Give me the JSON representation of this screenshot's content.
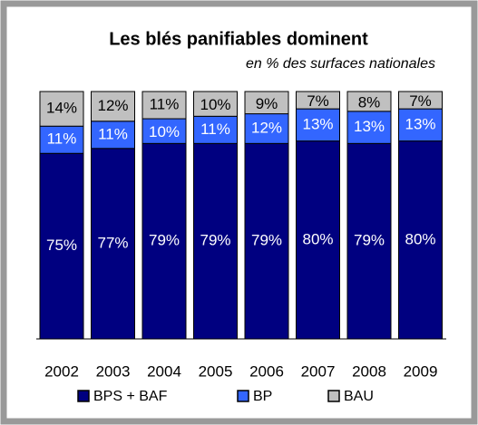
{
  "chart_data": {
    "type": "stacked_bar",
    "title": "Les blés panifiables dominent",
    "subtitle": "en % des surfaces nationales",
    "categories": [
      "2002",
      "2003",
      "2004",
      "2005",
      "2006",
      "2007",
      "2008",
      "2009"
    ],
    "series": [
      {
        "name": "BPS + BAF",
        "color": "#000080",
        "label_color": "#ffffff",
        "values": [
          75,
          77,
          79,
          79,
          79,
          80,
          79,
          80
        ],
        "value_labels": [
          "75%",
          "77%",
          "79%",
          "79%",
          "79%",
          "80%",
          "79%",
          "80%"
        ]
      },
      {
        "name": "BP",
        "color": "#3366ff",
        "label_color": "#ffffff",
        "values": [
          11,
          11,
          10,
          11,
          12,
          13,
          13,
          13
        ],
        "value_labels": [
          "11%",
          "11%",
          "10%",
          "11%",
          "12%",
          "13%",
          "13%",
          "13%"
        ]
      },
      {
        "name": "BAU",
        "color": "#c0c0c0",
        "label_color": "#000000",
        "values": [
          14,
          12,
          11,
          10,
          9,
          7,
          8,
          7
        ],
        "value_labels": [
          "14%",
          "12%",
          "11%",
          "10%",
          "9%",
          "7%",
          "8%",
          "7%"
        ]
      }
    ]
  }
}
